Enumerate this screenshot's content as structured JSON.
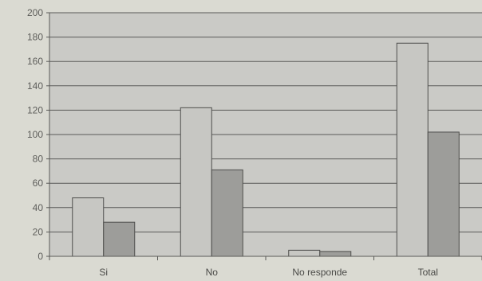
{
  "chart_data": {
    "type": "bar",
    "categories": [
      "Si",
      "No",
      "No responde",
      "Total"
    ],
    "series": [
      {
        "values": [
          48,
          122,
          5,
          175
        ],
        "color": "#c7c7c3"
      },
      {
        "values": [
          28,
          71,
          4,
          102
        ],
        "color": "#9d9d9a"
      }
    ],
    "ylim": [
      0,
      200
    ],
    "yticks": [
      0,
      20,
      40,
      60,
      80,
      100,
      120,
      140,
      160,
      180,
      200
    ],
    "grid": true,
    "plot_background": "#cacac6",
    "gridline_color": "#5a5a58",
    "bar_outline_color": "#4e4e4c"
  }
}
